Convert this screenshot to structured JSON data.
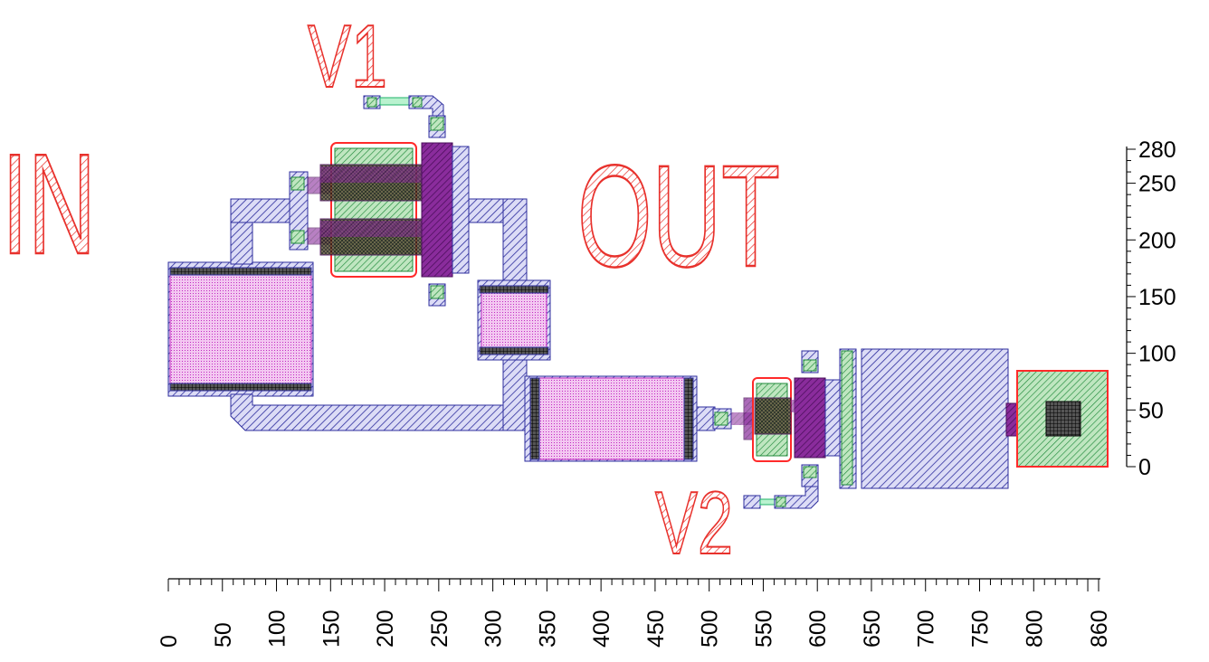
{
  "labels": {
    "in": "IN",
    "out": "OUT",
    "v1": "V1",
    "v2": "V2"
  },
  "axes": {
    "x_ticks": [
      "0",
      "50",
      "100",
      "150",
      "200",
      "250",
      "300",
      "350",
      "400",
      "450",
      "500",
      "550",
      "600",
      "650",
      "700",
      "750",
      "800",
      "860"
    ],
    "y_ticks": [
      "0",
      "50",
      "100",
      "150",
      "200",
      "250",
      "280"
    ]
  },
  "colors": {
    "label_red": "#e8312c",
    "metal_blue": "#2e2e9e",
    "via_green": "#1f8a3a",
    "poly_magenta": "#c02ac0",
    "purple_fill": "#7a1e8a",
    "pink_border": "#ff2a2a"
  }
}
